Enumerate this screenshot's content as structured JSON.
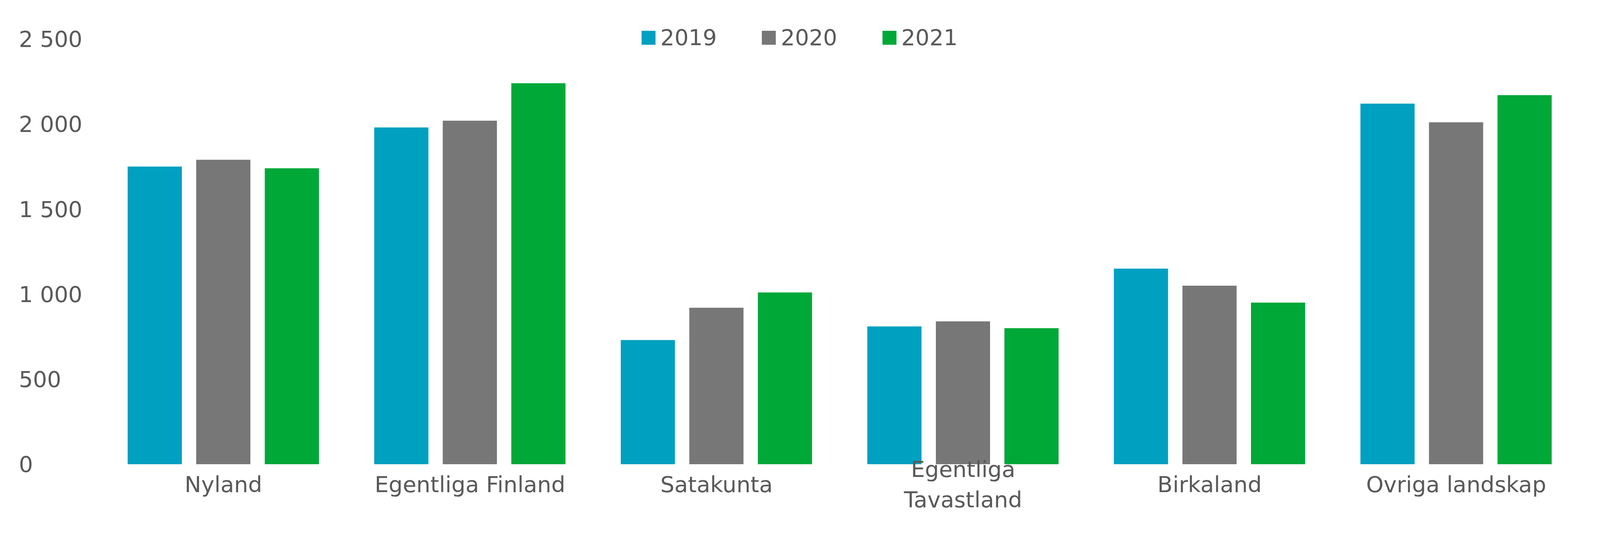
{
  "chart_data": {
    "type": "bar",
    "categories": [
      "Nyland",
      "Egentliga Finland",
      "Satakunta",
      "Egentliga Tavastland",
      "Birkaland",
      "Ovriga landskap"
    ],
    "series": [
      {
        "name": "2019",
        "color": "#00a0c0",
        "values": [
          1750,
          1980,
          730,
          810,
          1150,
          2120
        ]
      },
      {
        "name": "2020",
        "color": "#777777",
        "values": [
          1790,
          2020,
          920,
          840,
          1050,
          2010
        ]
      },
      {
        "name": "2021",
        "color": "#00a838",
        "values": [
          1740,
          2240,
          1010,
          800,
          950,
          2170
        ]
      }
    ],
    "ylim": [
      0,
      2500
    ],
    "yticks": [
      0,
      500,
      {
        "value": 1000,
        "label": "1 000"
      },
      {
        "value": 1500,
        "label": "1 500"
      },
      {
        "value": 2000,
        "label": "2 000"
      },
      {
        "value": 2500,
        "label": "2 500"
      }
    ],
    "grid": false,
    "legend": "top"
  }
}
